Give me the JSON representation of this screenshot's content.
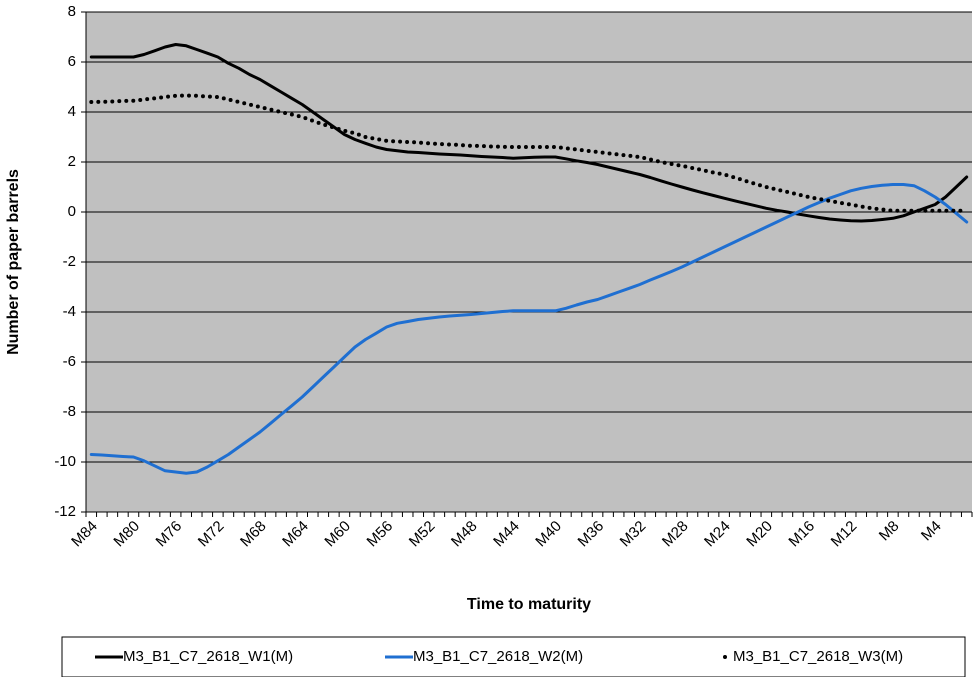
{
  "chart_data": {
    "type": "line",
    "x_label": "Time to maturity",
    "y_label": "Number of paper barrels",
    "categories": [
      "M84",
      null,
      null,
      null,
      "M80",
      null,
      null,
      null,
      "M76",
      null,
      null,
      null,
      "M72",
      null,
      null,
      null,
      "M68",
      null,
      null,
      null,
      "M64",
      null,
      null,
      null,
      "M60",
      null,
      null,
      null,
      "M56",
      null,
      null,
      null,
      "M52",
      null,
      null,
      null,
      "M48",
      null,
      null,
      null,
      "M44",
      null,
      null,
      null,
      "M40",
      null,
      null,
      null,
      "M36",
      null,
      null,
      null,
      "M32",
      null,
      null,
      null,
      "M28",
      null,
      null,
      null,
      "M24",
      null,
      null,
      null,
      "M20",
      null,
      null,
      null,
      "M16",
      null,
      null,
      null,
      "M12",
      null,
      null,
      null,
      "M8",
      null,
      null,
      null,
      "M4",
      null,
      null,
      null
    ],
    "series": [
      {
        "name": "M3_B1_C7_2618_W1(M)",
        "color": "#000000",
        "style": "solid",
        "values": [
          6.2,
          6.2,
          6.2,
          6.2,
          6.2,
          6.3,
          6.45,
          6.6,
          6.7,
          6.65,
          6.5,
          6.35,
          6.2,
          5.95,
          5.75,
          5.5,
          5.3,
          5.05,
          4.8,
          4.55,
          4.3,
          4.0,
          3.7,
          3.4,
          3.1,
          2.9,
          2.75,
          2.6,
          2.5,
          2.45,
          2.4,
          2.38,
          2.35,
          2.32,
          2.3,
          2.28,
          2.25,
          2.22,
          2.2,
          2.18,
          2.15,
          2.17,
          2.19,
          2.2,
          2.2,
          2.13,
          2.05,
          1.98,
          1.9,
          1.8,
          1.7,
          1.6,
          1.5,
          1.38,
          1.25,
          1.12,
          1.0,
          0.88,
          0.77,
          0.66,
          0.55,
          0.45,
          0.35,
          0.25,
          0.15,
          0.07,
          0,
          -0.08,
          -0.15,
          -0.22,
          -0.28,
          -0.32,
          -0.35,
          -0.36,
          -0.34,
          -0.3,
          -0.25,
          -0.15,
          0,
          0.15,
          0.3,
          0.6,
          1.0,
          1.4
        ]
      },
      {
        "name": "M3_B1_C7_2618_W2(M)",
        "color": "#1f6fd1",
        "style": "solid",
        "values": [
          -9.7,
          -9.72,
          -9.75,
          -9.78,
          -9.8,
          -9.95,
          -10.15,
          -10.35,
          -10.4,
          -10.45,
          -10.4,
          -10.2,
          -9.95,
          -9.7,
          -9.4,
          -9.1,
          -8.8,
          -8.45,
          -8.1,
          -7.75,
          -7.4,
          -7.0,
          -6.6,
          -6.2,
          -5.8,
          -5.4,
          -5.1,
          -4.85,
          -4.6,
          -4.45,
          -4.38,
          -4.3,
          -4.25,
          -4.2,
          -4.16,
          -4.13,
          -4.1,
          -4.06,
          -4.02,
          -3.98,
          -3.95,
          -3.95,
          -3.95,
          -3.95,
          -3.95,
          -3.85,
          -3.72,
          -3.6,
          -3.5,
          -3.35,
          -3.2,
          -3.05,
          -2.9,
          -2.72,
          -2.55,
          -2.38,
          -2.2,
          -2.0,
          -1.8,
          -1.6,
          -1.4,
          -1.2,
          -1.0,
          -0.8,
          -0.6,
          -0.4,
          -0.2,
          0,
          0.2,
          0.38,
          0.55,
          0.7,
          0.85,
          0.95,
          1.02,
          1.07,
          1.1,
          1.1,
          1.05,
          0.85,
          0.6,
          0.3,
          -0.05,
          -0.4
        ]
      },
      {
        "name": "M3_B1_C7_2618_W3(M)",
        "color": "#000000",
        "style": "dotted",
        "values": [
          4.4,
          4.41,
          4.42,
          4.44,
          4.45,
          4.5,
          4.55,
          4.6,
          4.65,
          4.66,
          4.65,
          4.62,
          4.6,
          4.5,
          4.4,
          4.3,
          4.2,
          4.1,
          4.0,
          3.9,
          3.8,
          3.65,
          3.5,
          3.38,
          3.25,
          3.15,
          3.0,
          2.92,
          2.85,
          2.82,
          2.8,
          2.78,
          2.75,
          2.72,
          2.7,
          2.68,
          2.65,
          2.64,
          2.62,
          2.61,
          2.6,
          2.6,
          2.6,
          2.6,
          2.6,
          2.55,
          2.5,
          2.45,
          2.4,
          2.35,
          2.3,
          2.25,
          2.2,
          2.1,
          2.0,
          1.92,
          1.85,
          1.76,
          1.67,
          1.58,
          1.5,
          1.38,
          1.25,
          1.12,
          1.0,
          0.9,
          0.8,
          0.7,
          0.6,
          0.52,
          0.45,
          0.37,
          0.3,
          0.22,
          0.15,
          0.1,
          0.05,
          0.05,
          0.05,
          0.05,
          0.05,
          0.05,
          0.05,
          0.05
        ]
      }
    ],
    "ylim": [
      -12,
      8
    ],
    "yticks": [
      -12,
      -10,
      -8,
      -6,
      -4,
      -2,
      0,
      2,
      4,
      6,
      8
    ],
    "grid": true,
    "plot_background": "#c0c0c0",
    "legend": "bottom"
  }
}
